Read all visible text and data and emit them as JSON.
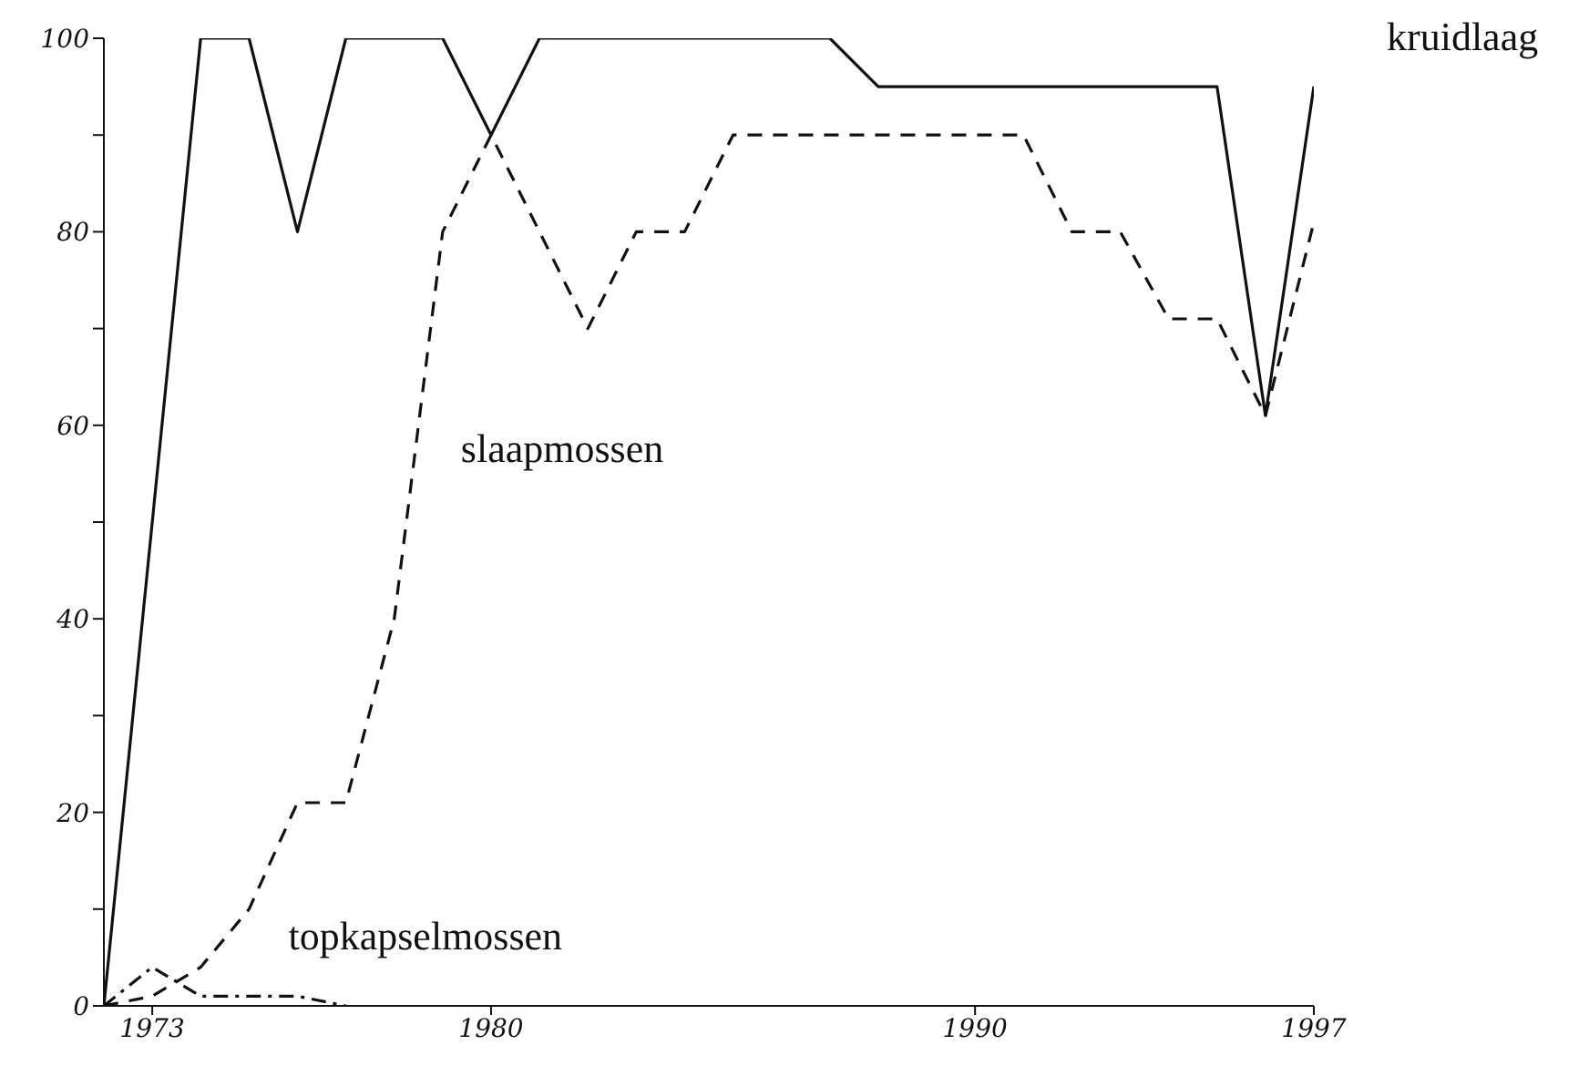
{
  "chart_data": {
    "type": "line",
    "xlim": [
      1972,
      1997
    ],
    "xticks": [
      1973,
      1980,
      1990,
      1997
    ],
    "ylim": [
      0,
      100
    ],
    "yticks": [
      0,
      {
        "value": 10,
        "label": null
      },
      20,
      {
        "value": 30,
        "label": null
      },
      40,
      {
        "value": 50,
        "label": null
      },
      60,
      {
        "value": 70,
        "label": null
      },
      80,
      {
        "value": 90,
        "label": null
      },
      100
    ],
    "grid": false,
    "legend": false,
    "marker": "none",
    "series": [
      {
        "name": "kruidlaag",
        "color": "#111111",
        "line_style": "solid",
        "x": [
          1972,
          1974,
          1975,
          1976,
          1977,
          1979,
          1980,
          1981,
          1987,
          1988,
          1995,
          1996,
          1997
        ],
        "values": [
          0,
          100,
          100,
          80,
          100,
          100,
          90,
          100,
          100,
          95,
          95,
          61,
          95
        ]
      },
      {
        "name": "slaapmossen",
        "color": "#111111",
        "line_style": "dashed",
        "x": [
          1972,
          1973,
          1974,
          1975,
          1976,
          1977,
          1978,
          1979,
          1980,
          1982,
          1983,
          1984,
          1985,
          1991,
          1992,
          1993,
          1994,
          1995,
          1996,
          1997
        ],
        "values": [
          0,
          1,
          4,
          10,
          21,
          21,
          40,
          80,
          90,
          70,
          80,
          80,
          90,
          90,
          80,
          80,
          71,
          71,
          61,
          81
        ]
      },
      {
        "name": "topkapselmossen",
        "color": "#111111",
        "line_style": "dotted",
        "x": [
          1972,
          1973,
          1974,
          1976,
          1977
        ],
        "values": [
          0,
          4,
          1,
          1,
          0
        ]
      }
    ]
  }
}
